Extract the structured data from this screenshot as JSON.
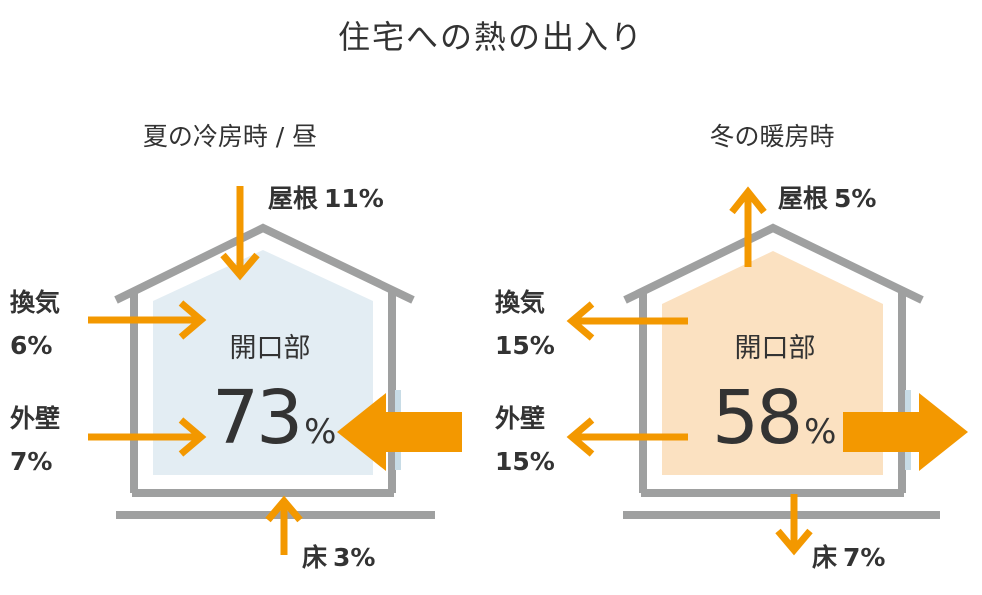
{
  "title": "住宅への熱の出入り",
  "colors": {
    "arrow": "#F39800",
    "frame": "#9FA0A0",
    "summer_fill": "#E3EDF3",
    "winter_fill": "#FBE1C1",
    "glass": "#C8DCE6",
    "text": "#333333"
  },
  "summer": {
    "heading": "夏の冷房時 / 昼",
    "roof": {
      "name": "屋根",
      "value": "11%"
    },
    "vent": {
      "name": "換気",
      "value": "6%"
    },
    "wall": {
      "name": "外壁",
      "value": "7%"
    },
    "floor": {
      "name": "床",
      "value": "3%"
    },
    "opening": {
      "name": "開口部",
      "value": "73",
      "unit": "%"
    }
  },
  "winter": {
    "heading": "冬の暖房時",
    "roof": {
      "name": "屋根",
      "value": "5%"
    },
    "vent": {
      "name": "換気",
      "value": "15%"
    },
    "wall": {
      "name": "外壁",
      "value": "15%"
    },
    "floor": {
      "name": "床",
      "value": "7%"
    },
    "opening": {
      "name": "開口部",
      "value": "58",
      "unit": "%"
    }
  }
}
